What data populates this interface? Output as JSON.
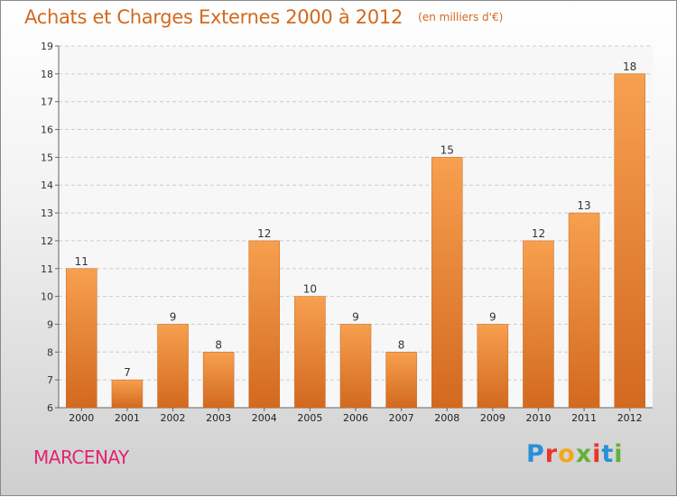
{
  "header": {
    "title": "Achats et Charges Externes 2000 à 2012",
    "subtitle": "(en milliers d'€)"
  },
  "footer": {
    "commune": "MARCENAY",
    "logo_text": "Proxiti"
  },
  "colors": {
    "bar_top": "#f7a04f",
    "bar_bottom": "#d2691e",
    "title": "#d2691e",
    "commune": "#e0266c"
  },
  "chart_data": {
    "type": "bar",
    "title": "Achats et Charges Externes 2000 à 2012",
    "subtitle": "(en milliers d'€)",
    "categories": [
      "2000",
      "2001",
      "2002",
      "2003",
      "2004",
      "2005",
      "2006",
      "2007",
      "2008",
      "2009",
      "2010",
      "2011",
      "2012"
    ],
    "values": [
      11,
      7,
      9,
      8,
      12,
      10,
      9,
      8,
      15,
      9,
      12,
      13,
      18
    ],
    "ylim": [
      6,
      19
    ],
    "yticks": [
      6,
      7,
      8,
      9,
      10,
      11,
      12,
      13,
      14,
      15,
      16,
      17,
      18,
      19
    ],
    "grid": true,
    "data_labels": true,
    "legend": "none"
  }
}
